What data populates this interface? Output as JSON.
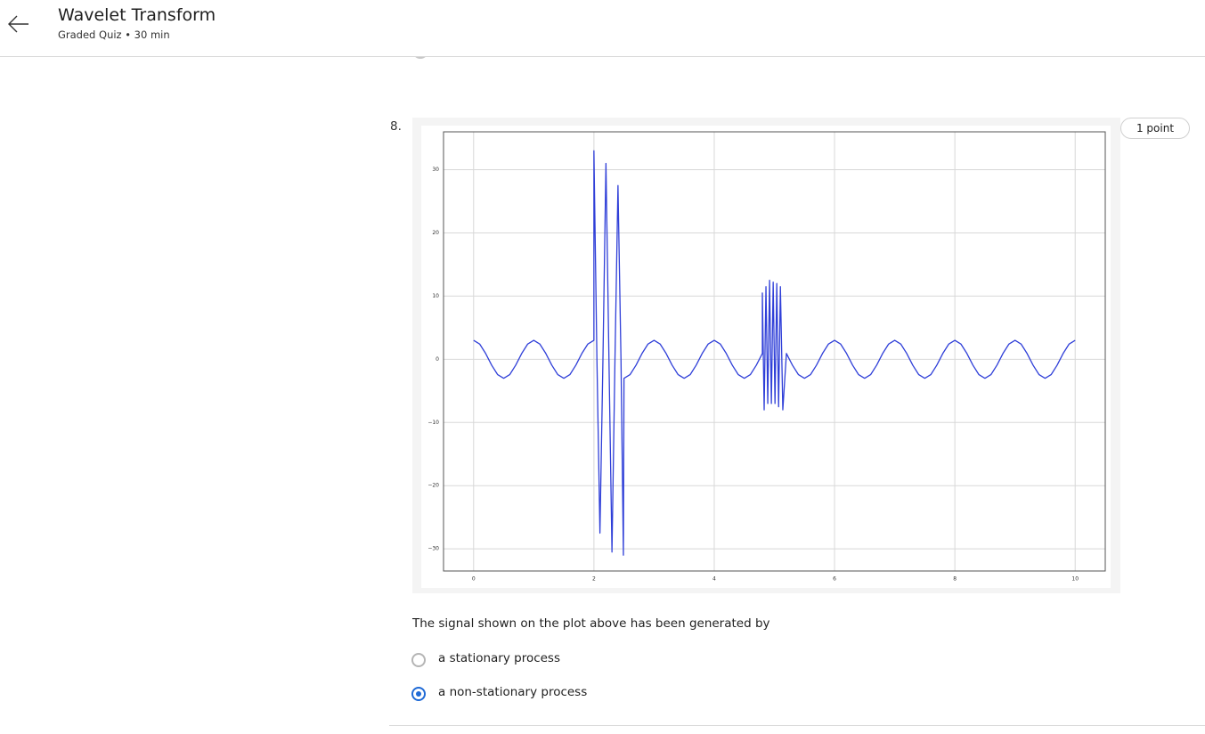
{
  "header": {
    "title": "Wavelet Transform",
    "subtitle": "Graded Quiz • 30 min"
  },
  "question": {
    "number": "8.",
    "points": "1 point",
    "prompt": "The signal shown on the plot above has been generated by",
    "options": [
      {
        "label": "a stationary process"
      },
      {
        "label": "a non-stationary process"
      }
    ],
    "selected": 1
  },
  "chart_data": {
    "type": "line",
    "color": "#2f3fd8",
    "grid": true,
    "xlim": [
      -0.5,
      10.5
    ],
    "ylim": [
      -33.5,
      36
    ],
    "xticks": [
      0,
      2,
      4,
      6,
      8,
      10
    ],
    "yticks": [
      {
        "value": -30,
        "label": "−30"
      },
      {
        "value": -20,
        "label": "−20"
      },
      {
        "value": -10,
        "label": "−10"
      },
      0,
      10,
      20,
      30
    ],
    "x": [
      0,
      0.1,
      0.2,
      0.3,
      0.4,
      0.5,
      0.6,
      0.7,
      0.8,
      0.9,
      1,
      1.1,
      1.2,
      1.3,
      1.4,
      1.5,
      1.6,
      1.7,
      1.8,
      1.9,
      2,
      2,
      2.05,
      2.1,
      2.15,
      2.2,
      2.25,
      2.3,
      2.35,
      2.4,
      2.45,
      2.49,
      2.5,
      2.6,
      2.7,
      2.8,
      2.9,
      3,
      3.1,
      3.2,
      3.3,
      3.4,
      3.5,
      3.6,
      3.7,
      3.8,
      3.9,
      4,
      4.1,
      4.2,
      4.3,
      4.4,
      4.5,
      4.6,
      4.7,
      4.8,
      4.8,
      4.83,
      4.86,
      4.89,
      4.92,
      4.95,
      4.98,
      5.01,
      5.04,
      5.07,
      5.1,
      5.14,
      5.2,
      5.3,
      5.4,
      5.5,
      5.6,
      5.7,
      5.8,
      5.9,
      6,
      6.1,
      6.2,
      6.3,
      6.4,
      6.5,
      6.6,
      6.7,
      6.8,
      6.9,
      7,
      7.1,
      7.2,
      7.3,
      7.4,
      7.5,
      7.6,
      7.7,
      7.8,
      7.9,
      8,
      8.1,
      8.2,
      8.3,
      8.4,
      8.5,
      8.6,
      8.7,
      8.8,
      8.9,
      9,
      9.1,
      9.2,
      9.3,
      9.4,
      9.5,
      9.6,
      9.7,
      9.8,
      9.9,
      10
    ],
    "values": [
      3,
      2.43,
      0.93,
      -0.93,
      -2.43,
      -3,
      -2.43,
      -0.93,
      0.93,
      2.43,
      3,
      2.43,
      0.93,
      -0.93,
      -2.43,
      -3,
      -2.43,
      -0.93,
      0.93,
      2.43,
      3,
      33,
      0,
      -27.5,
      0,
      31,
      0,
      -30.5,
      0,
      27.5,
      0,
      -31,
      -3,
      -2.43,
      -0.93,
      0.93,
      2.43,
      3,
      2.43,
      0.93,
      -0.93,
      -2.43,
      -3,
      -2.43,
      -0.93,
      0.93,
      2.43,
      3,
      2.43,
      0.93,
      -0.93,
      -2.43,
      -3,
      -2.43,
      -0.93,
      0.93,
      10.5,
      -8,
      11.5,
      -7,
      12.5,
      -7,
      12.2,
      -7,
      12,
      -7.5,
      11.5,
      -8,
      0.93,
      -0.93,
      -2.43,
      -3,
      -2.43,
      -0.93,
      0.93,
      2.43,
      3,
      2.43,
      0.93,
      -0.93,
      -2.43,
      -3,
      -2.43,
      -0.93,
      0.93,
      2.43,
      3,
      2.43,
      0.93,
      -0.93,
      -2.43,
      -3,
      -2.43,
      -0.93,
      0.93,
      2.43,
      3,
      2.43,
      0.93,
      -0.93,
      -2.43,
      -3,
      -2.43,
      -0.93,
      0.93,
      2.43,
      3,
      2.43,
      0.93,
      -0.93,
      -2.43,
      -3,
      -2.43,
      -0.93,
      0.93,
      2.43,
      3
    ]
  }
}
